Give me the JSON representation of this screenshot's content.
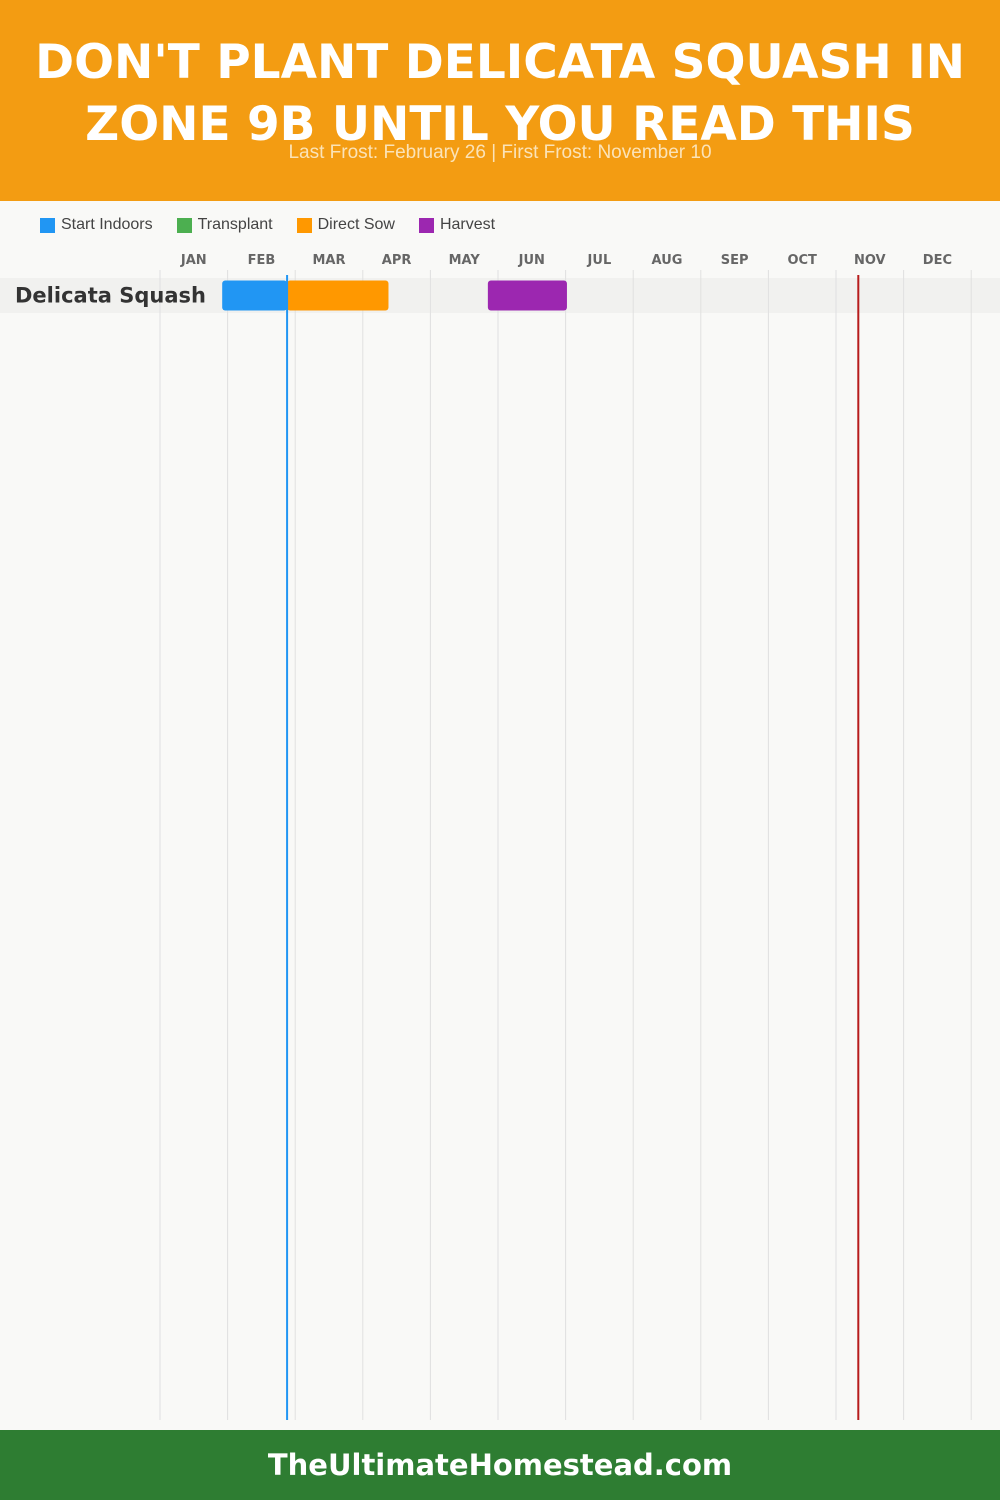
{
  "header": {
    "title": "DON'T PLANT DELICATA SQUASH IN ZONE 9B UNTIL YOU READ THIS",
    "subtitle": "Last Frost: February 26 | First Frost: November 10"
  },
  "legend": [
    {
      "label": "Start Indoors",
      "color": "#2196f3"
    },
    {
      "label": "Transplant",
      "color": "#4caf50"
    },
    {
      "label": "Direct Sow",
      "color": "#ff9800"
    },
    {
      "label": "Harvest",
      "color": "#9c27b0"
    }
  ],
  "chart_data": {
    "type": "gantt",
    "months": [
      "JAN",
      "FEB",
      "MAR",
      "APR",
      "MAY",
      "JUN",
      "JUL",
      "AUG",
      "SEP",
      "OCT",
      "NOV",
      "DEC"
    ],
    "rows": [
      {
        "label": "Delicata Squash",
        "bars": [
          {
            "phase": "Start Indoors",
            "start_month": 1.92,
            "end_month": 2.88,
            "color": "#2196f3"
          },
          {
            "phase": "Direct Sow",
            "start_month": 2.88,
            "end_month": 4.38,
            "color": "#ff9800"
          },
          {
            "phase": "Harvest",
            "start_month": 5.85,
            "end_month": 7.02,
            "color": "#9c27b0"
          }
        ]
      }
    ],
    "last_frost": {
      "label": "February 26",
      "month_position": 2.88,
      "color": "#2196f3"
    },
    "first_frost": {
      "label": "November 10",
      "month_position": 11.33,
      "color": "#b71c1c"
    }
  },
  "footer": {
    "text": "TheUltimateHomestead.com"
  }
}
